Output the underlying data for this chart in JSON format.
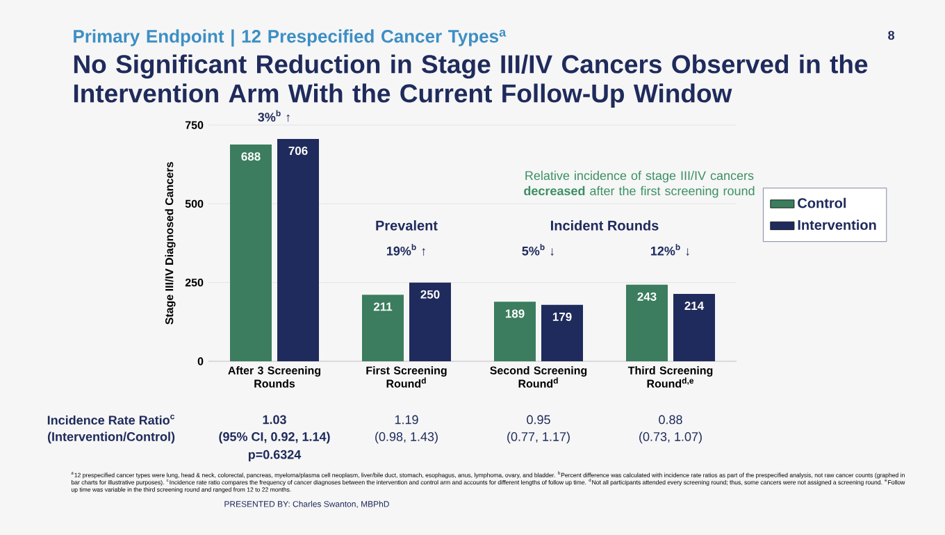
{
  "chart_data": {
    "type": "bar",
    "title": "Primary Endpoint | 12 Prespecified Cancer Types$^{a}$",
    "subtitle": "No Significant Reduction in Stage III/IV Cancers Observed in the Intervention Arm With the Current Follow-Up Window",
    "ylabel": "Stage III/IV Diagnosed Cancers",
    "categories": [
      "After 3 Screening Rounds",
      "First Screening Round$^{d}$",
      "Second Screening Round$^{d}$",
      "Third Screening Round$^{d,e}$"
    ],
    "series": [
      {
        "name": "Control",
        "color": "#3b7d5e",
        "values": [
          688,
          211,
          189,
          243
        ]
      },
      {
        "name": "Intervention",
        "color": "#1f2b5c",
        "values": [
          706,
          250,
          179,
          214
        ]
      }
    ],
    "ylim": [
      0,
      750
    ],
    "yticks": [
      0,
      250,
      500,
      750
    ],
    "grid": "y",
    "legend": "right",
    "data_labels": true,
    "annotations": [
      "3%$^{b}$ ↑",
      "19%$^{b}$ ↑",
      "5%$^{b}$ ↓",
      "12%$^{b}$ ↓",
      "Relative incidence of stage III/IV cancers **decreased** after the first screening round",
      "Prevalent",
      "Incident Rounds",
      "Incidence Rate Ratio$^{c}$",
      "(Intervention/Control)",
      "1.03",
      "(95% CI, 0.92, 1.14)",
      "p=0.6324",
      "1.19",
      "(0.98, 1.43)",
      "0.95",
      "(0.77, 1.17)",
      "0.88",
      "(0.73, 1.07)",
      "$^{a}$12 prespecified cancer types were lung, head & neck, colorectal, pancreas, myeloma/plasma cell neoplasm, liver/bile duct, stomach, esophagus, anus, lymphoma, ovary, and bladder. $^{b}$Percent difference was calculated with incidence rate ratios as part of the prespecified analysis, not raw cancer counts (graphed in bar charts for illustrative purposes). $^{c}$Incidence rate ratio compares the frequency of cancer diagnoses between the intervention and control arm and accounts for different lengths of follow up time. $^{d}$Not all participants attended every screening round; thus, some cancers were not assigned a screening round. $^{e}$Follow up time was variable in the third screening round and ranged from 12 to 22 months.",
      "8",
      "PRESENTED BY: Charles Swanton, MBPhD"
    ]
  }
}
